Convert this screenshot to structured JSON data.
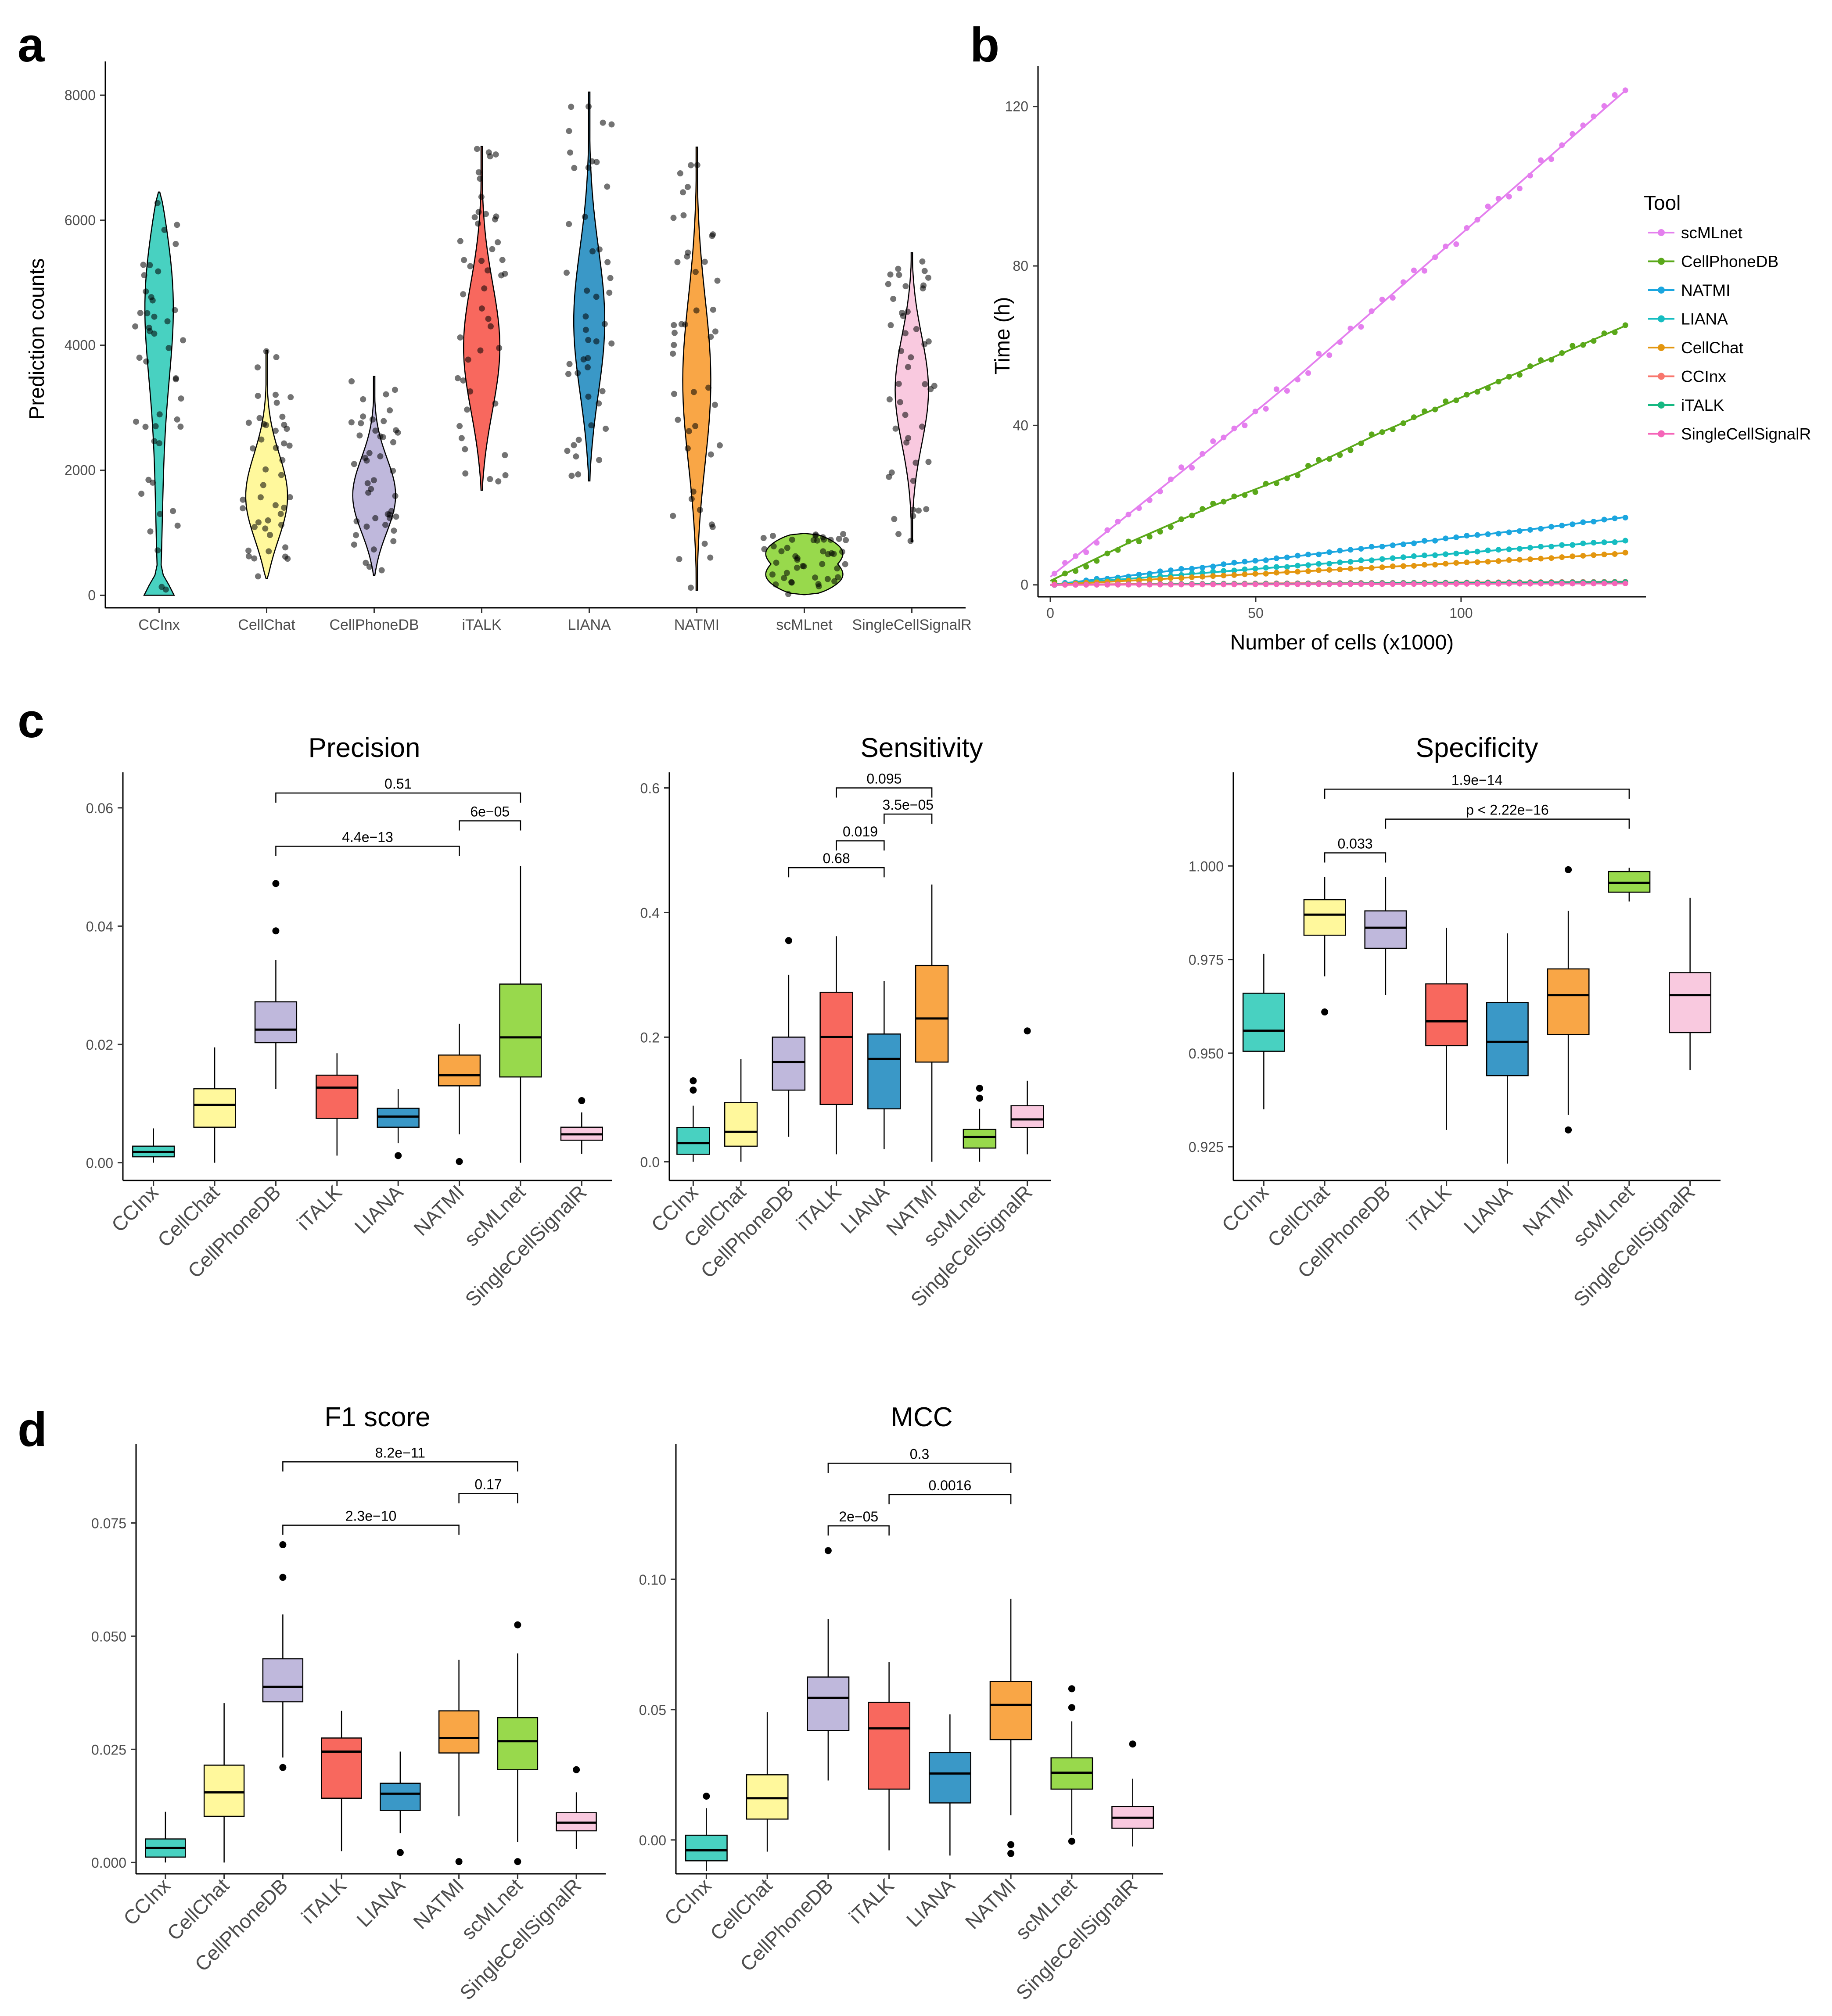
{
  "panels": {
    "a": "a",
    "b": "b",
    "c": "c",
    "d": "d"
  },
  "chart_data": [
    {
      "id": "a",
      "type": "violin",
      "title": "",
      "xlabel": "",
      "ylabel": "Prediction counts",
      "ylim": [
        -200,
        8400
      ],
      "yticks": [
        0,
        2000,
        4000,
        6000,
        8000
      ],
      "categories": [
        "CCInx",
        "CellChat",
        "CellPhoneDB",
        "iTALK",
        "LIANA",
        "NATMI",
        "scMLnet",
        "SingleCellSignalR"
      ],
      "colors": [
        "#48d1c1",
        "#fff89c",
        "#bfb8dc",
        "#f8685e",
        "#3a98c7",
        "#f9a646",
        "#98d94c",
        "#f9c9df"
      ],
      "ranges": [
        [
          0,
          6450
        ],
        [
          270,
          3920
        ],
        [
          320,
          3500
        ],
        [
          1680,
          7180
        ],
        [
          1830,
          8050
        ],
        [
          80,
          7170
        ],
        [
          10,
          990
        ],
        [
          860,
          5480
        ]
      ],
      "medians": [
        3200,
        1500,
        1550,
        3900,
        4300,
        3400,
        450,
        3300
      ]
    },
    {
      "id": "b",
      "type": "line",
      "xlabel": "Number of cells (x1000)",
      "ylabel": "Time (h)",
      "xlim": [
        -3,
        145
      ],
      "ylim": [
        -3,
        128
      ],
      "xticks": [
        0,
        50,
        100
      ],
      "yticks": [
        0,
        40,
        80,
        120
      ],
      "legend_title": "Tool",
      "series": [
        {
          "name": "scMLnet",
          "color": "#e47fee",
          "x": [
            0,
            20,
            40,
            60,
            80,
            100,
            120,
            140
          ],
          "y": [
            2,
            18.5,
            35,
            52,
            70,
            88,
            106,
            124
          ]
        },
        {
          "name": "CellPhoneDB",
          "color": "#5aa81a",
          "x": [
            0,
            20,
            40,
            60,
            80,
            100,
            120,
            140
          ],
          "y": [
            1,
            11,
            20,
            28,
            38,
            47,
            56,
            65
          ]
        },
        {
          "name": "NATMI",
          "color": "#1ba6df",
          "x": [
            0,
            20,
            40,
            60,
            80,
            100,
            120,
            140
          ],
          "y": [
            0,
            2.4,
            4.8,
            7.2,
            9.6,
            12,
            14.3,
            17
          ]
        },
        {
          "name": "LIANA",
          "color": "#16bdc1",
          "x": [
            0,
            20,
            40,
            60,
            80,
            100,
            120,
            140
          ],
          "y": [
            0,
            1.6,
            3.2,
            4.8,
            6.4,
            8,
            9.6,
            11
          ]
        },
        {
          "name": "CellChat",
          "color": "#e3960f",
          "x": [
            0,
            20,
            40,
            60,
            80,
            100,
            120,
            140
          ],
          "y": [
            0,
            1.1,
            2.2,
            3.3,
            4.4,
            5.5,
            6.6,
            8
          ]
        },
        {
          "name": "CCInx",
          "color": "#f8766d",
          "x": [
            0,
            20,
            40,
            60,
            80,
            100,
            120,
            140
          ],
          "y": [
            0,
            0.2,
            0.3,
            0.4,
            0.5,
            0.6,
            0.7,
            0.8
          ]
        },
        {
          "name": "iTALK",
          "color": "#17b882",
          "x": [
            0,
            20,
            40,
            60,
            80,
            100,
            120,
            140
          ],
          "y": [
            0,
            0.1,
            0.2,
            0.3,
            0.4,
            0.5,
            0.6,
            0.7
          ]
        },
        {
          "name": "SingleCellSignalR",
          "color": "#f565b8",
          "x": [
            0,
            20,
            40,
            60,
            80,
            100,
            120,
            140
          ],
          "y": [
            0,
            0.05,
            0.1,
            0.15,
            0.2,
            0.25,
            0.3,
            0.35
          ]
        }
      ]
    },
    {
      "id": "precision",
      "type": "box",
      "title": "Precision",
      "categories": [
        "CCInx",
        "CellChat",
        "CellPhoneDB",
        "iTALK",
        "LIANA",
        "NATMI",
        "scMLnet",
        "SingleCellSignalR"
      ],
      "ylim": [
        -0.003,
        0.066
      ],
      "yticks": [
        0.0,
        0.02,
        0.04,
        0.06
      ],
      "ytick_labels": [
        "0.00",
        "0.02",
        "0.04",
        "0.06"
      ],
      "boxes": [
        {
          "min": 0.0,
          "q1": 0.001,
          "median": 0.0018,
          "q3": 0.0028,
          "max": 0.0058,
          "outliers": []
        },
        {
          "min": 0.0,
          "q1": 0.006,
          "median": 0.0098,
          "q3": 0.0125,
          "max": 0.0195,
          "outliers": []
        },
        {
          "min": 0.0125,
          "q1": 0.0203,
          "median": 0.0225,
          "q3": 0.0272,
          "max": 0.0343,
          "outliers": [
            0.0472,
            0.0392
          ]
        },
        {
          "min": 0.0012,
          "q1": 0.0075,
          "median": 0.0127,
          "q3": 0.0148,
          "max": 0.0185,
          "outliers": []
        },
        {
          "min": 0.0033,
          "q1": 0.006,
          "median": 0.0078,
          "q3": 0.0092,
          "max": 0.0125,
          "outliers": [
            0.0012
          ]
        },
        {
          "min": 0.0048,
          "q1": 0.013,
          "median": 0.0148,
          "q3": 0.0182,
          "max": 0.0235,
          "outliers": [
            0.0002
          ]
        },
        {
          "min": 0.0,
          "q1": 0.0145,
          "median": 0.0212,
          "q3": 0.0302,
          "max": 0.0502,
          "outliers": []
        },
        {
          "min": 0.0015,
          "q1": 0.0038,
          "median": 0.0048,
          "q3": 0.006,
          "max": 0.0085,
          "outliers": [
            0.0105
          ]
        }
      ],
      "comparisons": [
        {
          "from": 2,
          "to": 6,
          "label": "0.51",
          "y": 0.0625
        },
        {
          "from": 5,
          "to": 6,
          "label": "6e−05",
          "y": 0.0578
        },
        {
          "from": 2,
          "to": 5,
          "label": "4.4e−13",
          "y": 0.0535
        }
      ]
    },
    {
      "id": "sensitivity",
      "type": "box",
      "title": "Sensitivity",
      "categories": [
        "CCInx",
        "CellChat",
        "CellPhoneDB",
        "iTALK",
        "LIANA",
        "NATMI",
        "scMLnet",
        "SingleCellSignalR"
      ],
      "ylim": [
        -0.03,
        0.625
      ],
      "yticks": [
        0.0,
        0.2,
        0.4,
        0.6
      ],
      "ytick_labels": [
        "0.0",
        "0.2",
        "0.4",
        "0.6"
      ],
      "boxes": [
        {
          "min": 0.0,
          "q1": 0.012,
          "median": 0.03,
          "q3": 0.055,
          "max": 0.09,
          "outliers": [
            0.115,
            0.13
          ]
        },
        {
          "min": 0.0,
          "q1": 0.025,
          "median": 0.048,
          "q3": 0.095,
          "max": 0.165,
          "outliers": []
        },
        {
          "min": 0.04,
          "q1": 0.115,
          "median": 0.16,
          "q3": 0.2,
          "max": 0.3,
          "outliers": [
            0.355
          ]
        },
        {
          "min": 0.012,
          "q1": 0.092,
          "median": 0.2,
          "q3": 0.272,
          "max": 0.362,
          "outliers": []
        },
        {
          "min": 0.02,
          "q1": 0.085,
          "median": 0.165,
          "q3": 0.205,
          "max": 0.29,
          "outliers": []
        },
        {
          "min": 0.0,
          "q1": 0.16,
          "median": 0.23,
          "q3": 0.315,
          "max": 0.445,
          "outliers": []
        },
        {
          "min": 0.0,
          "q1": 0.022,
          "median": 0.04,
          "q3": 0.052,
          "max": 0.085,
          "outliers": [
            0.102,
            0.118
          ]
        },
        {
          "min": 0.012,
          "q1": 0.055,
          "median": 0.068,
          "q3": 0.09,
          "max": 0.13,
          "outliers": [
            0.21
          ]
        }
      ],
      "comparisons": [
        {
          "from": 3,
          "to": 5,
          "label": "0.095",
          "y": 0.6
        },
        {
          "from": 4,
          "to": 5,
          "label": "3.5e−05",
          "y": 0.558
        },
        {
          "from": 3,
          "to": 4,
          "label": "0.019",
          "y": 0.515
        },
        {
          "from": 2,
          "to": 4,
          "label": "0.68",
          "y": 0.472
        }
      ]
    },
    {
      "id": "specificity",
      "type": "box",
      "title": "Specificity",
      "categories": [
        "CCInx",
        "CellChat",
        "CellPhoneDB",
        "iTALK",
        "LIANA",
        "NATMI",
        "scMLnet",
        "SingleCellSignalR"
      ],
      "ylim": [
        0.916,
        1.025
      ],
      "yticks": [
        0.925,
        0.95,
        0.975,
        1.0
      ],
      "ytick_labels": [
        "0.925",
        "0.950",
        "0.975",
        "1.000"
      ],
      "boxes": [
        {
          "min": 0.935,
          "q1": 0.9505,
          "median": 0.956,
          "q3": 0.966,
          "max": 0.9765,
          "outliers": []
        },
        {
          "min": 0.9705,
          "q1": 0.9815,
          "median": 0.987,
          "q3": 0.991,
          "max": 0.997,
          "outliers": [
            0.961
          ]
        },
        {
          "min": 0.9655,
          "q1": 0.978,
          "median": 0.9835,
          "q3": 0.988,
          "max": 0.997,
          "outliers": []
        },
        {
          "min": 0.9295,
          "q1": 0.952,
          "median": 0.9585,
          "q3": 0.9685,
          "max": 0.9835,
          "outliers": []
        },
        {
          "min": 0.9205,
          "q1": 0.944,
          "median": 0.953,
          "q3": 0.9635,
          "max": 0.982,
          "outliers": []
        },
        {
          "min": 0.9335,
          "q1": 0.955,
          "median": 0.9655,
          "q3": 0.9725,
          "max": 0.988,
          "outliers": [
            0.9295,
            0.999
          ]
        },
        {
          "min": 0.9905,
          "q1": 0.993,
          "median": 0.9955,
          "q3": 0.9985,
          "max": 0.9995,
          "outliers": []
        },
        {
          "min": 0.9455,
          "q1": 0.9555,
          "median": 0.9655,
          "q3": 0.9715,
          "max": 0.9915,
          "outliers": []
        }
      ],
      "comparisons": [
        {
          "from": 1,
          "to": 6,
          "label": "1.9e−14",
          "y": 1.0205
        },
        {
          "from": 2,
          "to": 6,
          "label": "p < 2.22e−16",
          "y": 1.0125
        },
        {
          "from": 1,
          "to": 2,
          "label": "0.033",
          "y": 1.0035
        }
      ]
    },
    {
      "id": "f1",
      "type": "box",
      "title": "F1 score",
      "categories": [
        "CCInx",
        "CellChat",
        "CellPhoneDB",
        "iTALK",
        "LIANA",
        "NATMI",
        "scMLnet",
        "SingleCellSignalR"
      ],
      "ylim": [
        -0.0025,
        0.0925
      ],
      "yticks": [
        0.0,
        0.025,
        0.05,
        0.075
      ],
      "ytick_labels": [
        "0.000",
        "0.025",
        "0.050",
        "0.075"
      ],
      "boxes": [
        {
          "min": 0.0,
          "q1": 0.0012,
          "median": 0.0032,
          "q3": 0.0052,
          "max": 0.0112,
          "outliers": []
        },
        {
          "min": 0.0,
          "q1": 0.0102,
          "median": 0.0155,
          "q3": 0.0215,
          "max": 0.0352,
          "outliers": []
        },
        {
          "min": 0.0232,
          "q1": 0.0355,
          "median": 0.0388,
          "q3": 0.045,
          "max": 0.0548,
          "outliers": [
            0.021,
            0.063,
            0.0702
          ]
        },
        {
          "min": 0.0025,
          "q1": 0.0142,
          "median": 0.0245,
          "q3": 0.0275,
          "max": 0.0335,
          "outliers": []
        },
        {
          "min": 0.0065,
          "q1": 0.0115,
          "median": 0.0152,
          "q3": 0.0175,
          "max": 0.0245,
          "outliers": [
            0.0022
          ]
        },
        {
          "min": 0.0102,
          "q1": 0.0242,
          "median": 0.0275,
          "q3": 0.0335,
          "max": 0.0448,
          "outliers": [
            0.0002
          ]
        },
        {
          "min": 0.0045,
          "q1": 0.0205,
          "median": 0.0268,
          "q3": 0.032,
          "max": 0.0462,
          "outliers": [
            0.0002,
            0.0525
          ]
        },
        {
          "min": 0.003,
          "q1": 0.007,
          "median": 0.0088,
          "q3": 0.011,
          "max": 0.0155,
          "outliers": [
            0.0205
          ]
        }
      ],
      "comparisons": [
        {
          "from": 2,
          "to": 6,
          "label": "8.2e−11",
          "y": 0.0885
        },
        {
          "from": 5,
          "to": 6,
          "label": "0.17",
          "y": 0.0815
        },
        {
          "from": 2,
          "to": 5,
          "label": "2.3e−10",
          "y": 0.0745
        }
      ]
    },
    {
      "id": "mcc",
      "type": "box",
      "title": "MCC",
      "categories": [
        "CCInx",
        "CellChat",
        "CellPhoneDB",
        "iTALK",
        "LIANA",
        "NATMI",
        "scMLnet",
        "SingleCellSignalR"
      ],
      "ylim": [
        -0.013,
        0.152
      ],
      "yticks": [
        0.0,
        0.05,
        0.1
      ],
      "ytick_labels": [
        "0.00",
        "0.05",
        "0.10"
      ],
      "boxes": [
        {
          "min": -0.012,
          "q1": -0.008,
          "median": -0.004,
          "q3": 0.0018,
          "max": 0.0122,
          "outliers": [
            0.0168
          ]
        },
        {
          "min": -0.0045,
          "q1": 0.008,
          "median": 0.016,
          "q3": 0.025,
          "max": 0.049,
          "outliers": []
        },
        {
          "min": 0.0228,
          "q1": 0.042,
          "median": 0.0545,
          "q3": 0.0625,
          "max": 0.0848,
          "outliers": [
            0.111
          ]
        },
        {
          "min": -0.004,
          "q1": 0.0195,
          "median": 0.0428,
          "q3": 0.0528,
          "max": 0.0682,
          "outliers": []
        },
        {
          "min": -0.006,
          "q1": 0.0142,
          "median": 0.0255,
          "q3": 0.0335,
          "max": 0.0482,
          "outliers": []
        },
        {
          "min": 0.0095,
          "q1": 0.0385,
          "median": 0.0518,
          "q3": 0.0608,
          "max": 0.0925,
          "outliers": [
            -0.0018,
            -0.0052
          ]
        },
        {
          "min": 0.002,
          "q1": 0.0195,
          "median": 0.0258,
          "q3": 0.0315,
          "max": 0.0455,
          "outliers": [
            -0.0005,
            0.0508,
            0.058
          ]
        },
        {
          "min": -0.0025,
          "q1": 0.0045,
          "median": 0.0085,
          "q3": 0.0128,
          "max": 0.0235,
          "outliers": [
            0.0368
          ]
        }
      ],
      "comparisons": [
        {
          "from": 2,
          "to": 5,
          "label": "0.3",
          "y": 0.1445
        },
        {
          "from": 3,
          "to": 5,
          "label": "0.0016",
          "y": 0.1325
        },
        {
          "from": 2,
          "to": 3,
          "label": "2e−05",
          "y": 0.1205
        }
      ]
    }
  ]
}
